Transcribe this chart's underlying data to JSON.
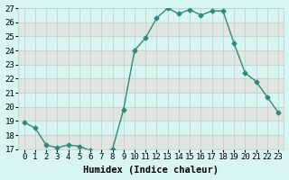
{
  "x": [
    0,
    1,
    2,
    3,
    4,
    5,
    6,
    7,
    8,
    9,
    10,
    11,
    12,
    13,
    14,
    15,
    16,
    17,
    18,
    19,
    20,
    21,
    22,
    23
  ],
  "y": [
    18.9,
    18.5,
    17.3,
    17.1,
    17.3,
    17.2,
    16.9,
    16.8,
    17.0,
    19.8,
    24.0,
    24.9,
    26.3,
    27.0,
    26.6,
    26.9,
    26.5,
    26.8,
    26.8,
    24.5,
    22.4,
    21.8,
    20.7,
    19.6
  ],
  "line_color": "#2e8b7a",
  "marker": "D",
  "markersize": 2.5,
  "linewidth": 1.0,
  "bg_color": "#d8f5f0",
  "stripe_color": "#e8d8d8",
  "grid_color": "#b8d4cc",
  "xlabel": "Humidex (Indice chaleur)",
  "xlim": [
    -0.5,
    23.5
  ],
  "ylim": [
    17,
    27
  ],
  "yticks": [
    17,
    18,
    19,
    20,
    21,
    22,
    23,
    24,
    25,
    26,
    27
  ],
  "xticks": [
    0,
    1,
    2,
    3,
    4,
    5,
    6,
    7,
    8,
    9,
    10,
    11,
    12,
    13,
    14,
    15,
    16,
    17,
    18,
    19,
    20,
    21,
    22,
    23
  ],
  "tick_label_fontsize": 6.5,
  "xlabel_fontsize": 7.5
}
